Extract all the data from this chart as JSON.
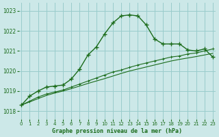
{
  "title": "Graphe pression niveau de la mer (hPa)",
  "background_color": "#cce8e8",
  "grid_color": "#99cccc",
  "line_color": "#1a6b1a",
  "x_ticks": [
    0,
    1,
    2,
    3,
    4,
    5,
    6,
    7,
    8,
    9,
    10,
    11,
    12,
    13,
    14,
    15,
    16,
    17,
    18,
    19,
    20,
    21,
    22,
    23
  ],
  "y_ticks": [
    1018,
    1019,
    1020,
    1021,
    1022,
    1023
  ],
  "ylim": [
    1017.6,
    1023.4
  ],
  "xlim": [
    -0.3,
    23.3
  ],
  "line1_y": [
    1018.3,
    1018.75,
    1019.0,
    1019.2,
    1019.25,
    1019.3,
    1019.6,
    1020.1,
    1020.8,
    1021.2,
    1021.85,
    1022.4,
    1022.75,
    1022.8,
    1022.75,
    1022.3,
    1021.6,
    1021.35,
    1021.35,
    1021.35,
    1021.05,
    1021.0,
    1021.1,
    1020.7
  ],
  "line2_y": [
    1018.3,
    1018.5,
    1018.7,
    1018.85,
    1018.95,
    1019.05,
    1019.2,
    1019.35,
    1019.5,
    1019.65,
    1019.8,
    1019.95,
    1020.05,
    1020.18,
    1020.3,
    1020.4,
    1020.5,
    1020.6,
    1020.7,
    1020.75,
    1020.85,
    1020.9,
    1021.0,
    1021.1
  ],
  "line3_y": [
    1018.3,
    1018.46,
    1018.62,
    1018.78,
    1018.9,
    1019.0,
    1019.12,
    1019.25,
    1019.38,
    1019.5,
    1019.62,
    1019.75,
    1019.88,
    1020.0,
    1020.1,
    1020.2,
    1020.3,
    1020.4,
    1020.5,
    1020.58,
    1020.65,
    1020.72,
    1020.8,
    1020.88
  ]
}
